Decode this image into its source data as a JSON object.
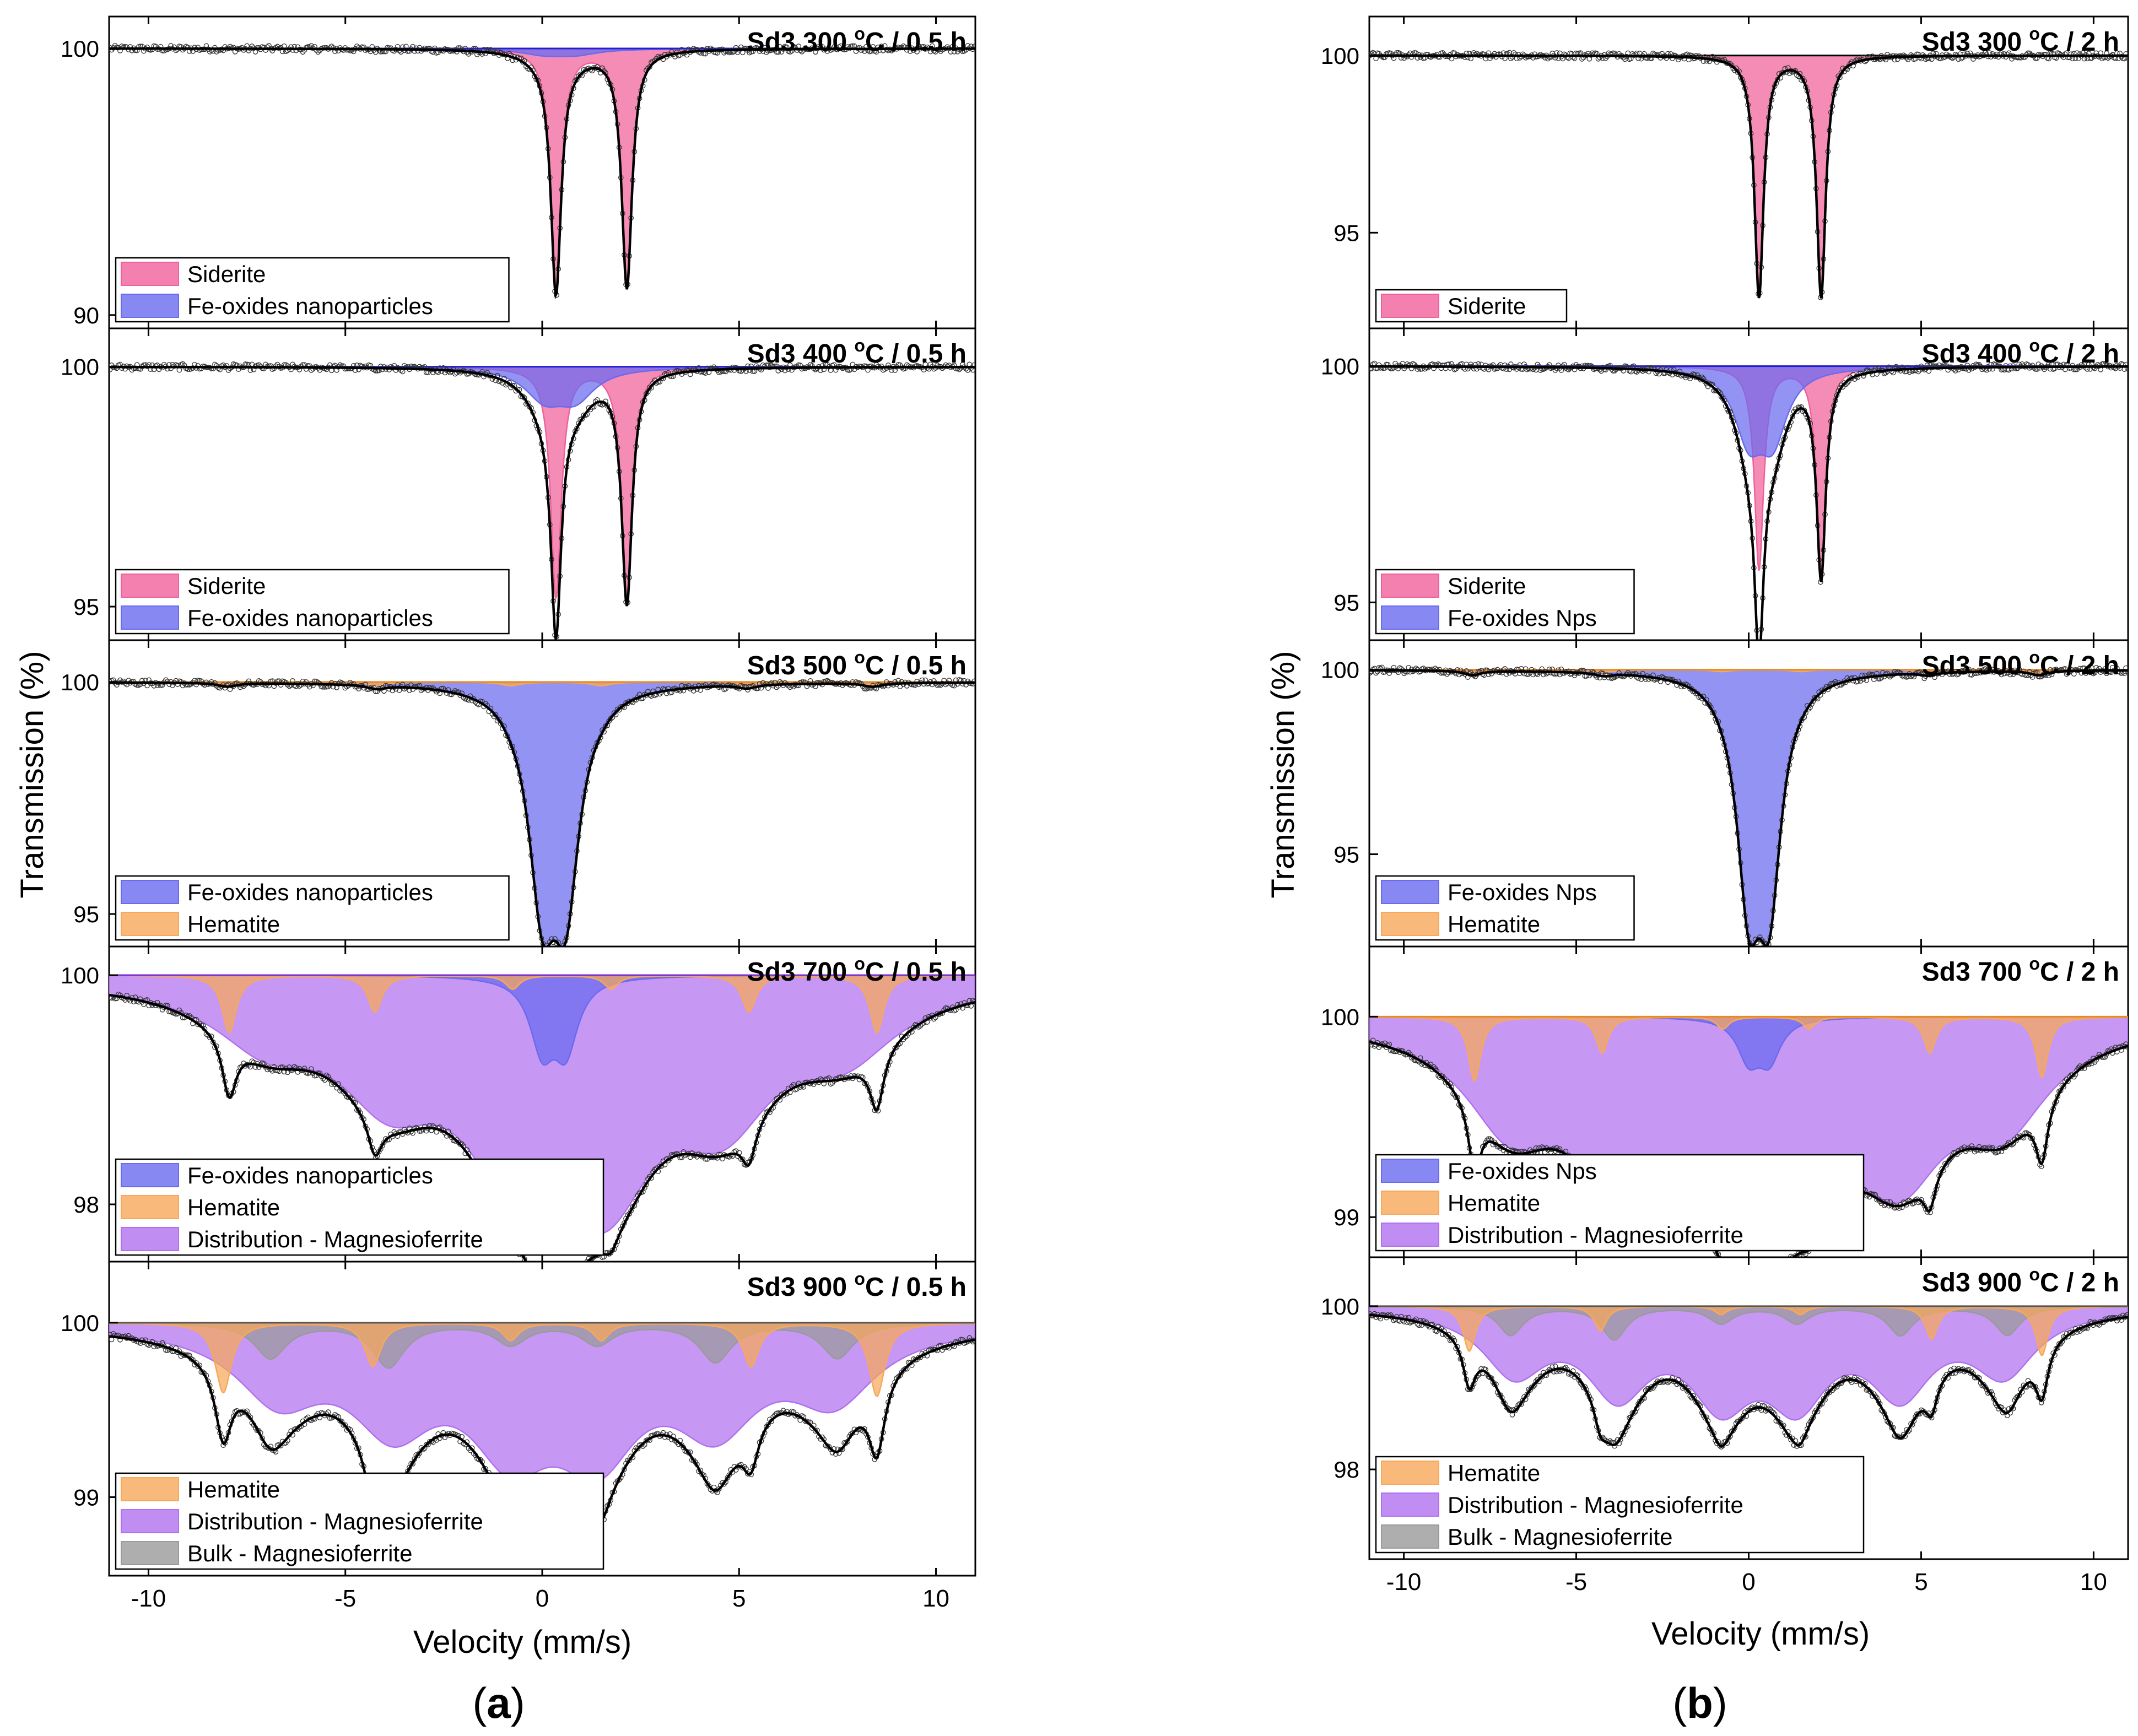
{
  "figure": {
    "y_axis_label": "Transmission (%)",
    "x_axis_label": "Velocity (mm/s)",
    "x_ticks": [
      "-10",
      "-5",
      "0",
      "5",
      "10"
    ],
    "x_tick_values": [
      -10,
      -5,
      0,
      5,
      10
    ],
    "captions": {
      "a": "(a)",
      "a_letter": "a",
      "b": "(b)",
      "b_letter": "b"
    },
    "colors": {
      "siderite": "#f0609a",
      "nanoparticles": "#6a6af0",
      "hematite": "#f7a85a",
      "distribution": "#b070f0",
      "bulk": "#9a9a9a",
      "fit": "#000000",
      "baseline_blue": "#2020d0",
      "baseline_orange": "#e88a20"
    }
  },
  "chart_data": [
    {
      "type": "scatter",
      "column": "a",
      "title": "Sd3 300 °C / 0.5 h",
      "title_main": "Sd3 300 ",
      "title_unit": "C / 0.5 h",
      "xlabel": "Velocity (mm/s)",
      "ylabel": "Transmission (%)",
      "xlim": [
        -11,
        11
      ],
      "ylim": [
        89.5,
        101.2
      ],
      "yticks": [
        "90",
        "100"
      ],
      "ytick_values": [
        90,
        100
      ],
      "baseline": "blue",
      "legend": [
        {
          "label": "Siderite",
          "color": "#f0609a"
        },
        {
          "label": "Fe-oxides nanoparticles",
          "color": "#6a6af0"
        }
      ],
      "components": [
        {
          "name": "Siderite",
          "color": "#f0609a",
          "kind": "doublet",
          "center": 1.25,
          "splitting": 1.8,
          "depth": 8.9,
          "width": 0.16
        },
        {
          "name": "Fe-oxides nanoparticles",
          "color": "#6a6af0",
          "kind": "doublet",
          "center": 0.45,
          "splitting": 0.8,
          "depth": 0.2,
          "width": 0.7
        }
      ]
    },
    {
      "type": "scatter",
      "column": "a",
      "title": "Sd3 400 °C / 0.5 h",
      "title_main": "Sd3 400 ",
      "title_unit": "C / 0.5 h",
      "xlabel": "Velocity (mm/s)",
      "ylabel": "Transmission (%)",
      "xlim": [
        -11,
        11
      ],
      "ylim": [
        94.3,
        100.8
      ],
      "yticks": [
        "95",
        "100"
      ],
      "ytick_values": [
        95,
        100
      ],
      "baseline": "blue",
      "legend": [
        {
          "label": "Siderite",
          "color": "#f0609a"
        },
        {
          "label": "Fe-oxides nanoparticles",
          "color": "#6a6af0"
        }
      ],
      "components": [
        {
          "name": "Siderite",
          "color": "#f0609a",
          "kind": "doublet",
          "center": 1.25,
          "splitting": 1.8,
          "depth": 4.8,
          "width": 0.16
        },
        {
          "name": "Fe-oxides nanoparticles",
          "color": "#6a6af0",
          "kind": "doublet",
          "center": 0.45,
          "splitting": 0.8,
          "depth": 0.6,
          "width": 0.6
        }
      ]
    },
    {
      "type": "scatter",
      "column": "a",
      "title": "Sd3 500 °C / 0.5 h",
      "title_main": "Sd3 500 ",
      "title_unit": "C / 0.5 h",
      "xlabel": "Velocity (mm/s)",
      "ylabel": "Transmission (%)",
      "xlim": [
        -11,
        11
      ],
      "ylim": [
        94.3,
        100.9
      ],
      "yticks": [
        "95",
        "100"
      ],
      "ytick_values": [
        95,
        100
      ],
      "baseline": "orange",
      "legend": [
        {
          "label": "Fe-oxides nanoparticles",
          "color": "#6a6af0"
        },
        {
          "label": "Hematite",
          "color": "#f7a85a"
        }
      ],
      "components": [
        {
          "name": "Fe-oxides nanoparticles",
          "color": "#6a6af0",
          "kind": "doublet",
          "center": 0.3,
          "splitting": 0.6,
          "depth": 4.2,
          "width": 0.42
        },
        {
          "name": "Hematite",
          "color": "#f7a85a",
          "kind": "sextet",
          "center": 0.3,
          "lines": [
            -8.0,
            -4.2,
            -0.8,
            1.5,
            5.2,
            8.4
          ],
          "depth": 0.08,
          "width": 0.3
        }
      ]
    },
    {
      "type": "scatter",
      "column": "a",
      "title": "Sd3 700 °C / 0.5 h",
      "title_main": "Sd3 700 ",
      "title_unit": "C / 0.5 h",
      "xlabel": "Velocity (mm/s)",
      "ylabel": "Transmission (%)",
      "xlim": [
        -11,
        11
      ],
      "ylim": [
        97.5,
        100.25
      ],
      "yticks": [
        "98",
        "100"
      ],
      "ytick_values": [
        98,
        100
      ],
      "baseline": "purple",
      "legend": [
        {
          "label": "Fe-oxides nanoparticles",
          "color": "#6a6af0"
        },
        {
          "label": "Hematite",
          "color": "#f7a85a"
        },
        {
          "label": "Distribution - Magnesioferrite",
          "color": "#b070f0"
        }
      ],
      "components": [
        {
          "name": "Distribution - Magnesioferrite",
          "color": "#b070f0",
          "kind": "broad-sextet",
          "lines": [
            -7.0,
            -3.9,
            -0.7,
            1.6,
            4.6,
            7.7
          ],
          "depths": [
            0.45,
            0.8,
            1.3,
            1.5,
            0.95,
            0.5
          ],
          "width": 1.6
        },
        {
          "name": "Fe-oxides nanoparticles",
          "color": "#6a6af0",
          "kind": "doublet",
          "center": 0.3,
          "splitting": 0.6,
          "depth": 0.6,
          "width": 0.38
        },
        {
          "name": "Hematite",
          "color": "#f7a85a",
          "kind": "sextet",
          "lines": [
            -7.95,
            -4.25,
            -0.75,
            1.75,
            5.25,
            8.5
          ],
          "depths": [
            0.5,
            0.32,
            0.12,
            0.12,
            0.32,
            0.5
          ],
          "width": 0.22
        }
      ]
    },
    {
      "type": "scatter",
      "column": "a",
      "title": "Sd3 900 °C / 0.5 h",
      "title_main": "Sd3 900 ",
      "title_unit": "C / 0.5 h",
      "xlabel": "Velocity (mm/s)",
      "ylabel": "Transmission (%)",
      "xlim": [
        -11,
        11
      ],
      "ylim": [
        98.55,
        100.35
      ],
      "yticks": [
        "99",
        "100"
      ],
      "ytick_values": [
        99,
        100
      ],
      "baseline": "gray",
      "legend": [
        {
          "label": "Hematite",
          "color": "#f7a85a"
        },
        {
          "label": "Distribution - Magnesioferrite",
          "color": "#b070f0"
        },
        {
          "label": "Bulk - Magnesioferrite",
          "color": "#9a9a9a"
        }
      ],
      "components": [
        {
          "name": "Distribution - Magnesioferrite",
          "color": "#b070f0",
          "kind": "broad-sextet",
          "lines": [
            -6.7,
            -3.8,
            -0.8,
            1.4,
            4.4,
            7.4
          ],
          "depths": [
            0.38,
            0.5,
            0.6,
            0.62,
            0.5,
            0.38
          ],
          "width": 1.3
        },
        {
          "name": "Bulk - Magnesioferrite",
          "color": "#9a9a9a",
          "kind": "sextet",
          "lines": [
            -6.9,
            -3.9,
            -0.8,
            1.4,
            4.4,
            7.5
          ],
          "depths": [
            0.2,
            0.25,
            0.12,
            0.12,
            0.22,
            0.2
          ],
          "width": 0.5
        },
        {
          "name": "Hematite",
          "color": "#f7a85a",
          "kind": "sextet",
          "lines": [
            -8.1,
            -4.3,
            -0.8,
            1.5,
            5.3,
            8.5
          ],
          "depths": [
            0.4,
            0.25,
            0.1,
            0.1,
            0.25,
            0.42
          ],
          "width": 0.25
        }
      ]
    },
    {
      "type": "scatter",
      "column": "b",
      "title": "Sd3 300 °C / 2 h",
      "title_main": "Sd3 300 ",
      "title_unit": "C / 2 h",
      "xlabel": "Velocity (mm/s)",
      "ylabel": "Transmission (%)",
      "xlim": [
        -11,
        11
      ],
      "ylim": [
        92.3,
        101.1
      ],
      "yticks": [
        "95",
        "100"
      ],
      "ytick_values": [
        95,
        100
      ],
      "baseline": "black",
      "legend": [
        {
          "label": "Siderite",
          "color": "#f0609a"
        }
      ],
      "components": [
        {
          "name": "Siderite",
          "color": "#f0609a",
          "kind": "doublet",
          "center": 1.2,
          "splitting": 1.8,
          "depth": 6.8,
          "width": 0.16
        }
      ]
    },
    {
      "type": "scatter",
      "column": "b",
      "title": "Sd3 400 °C / 2 h",
      "title_main": "Sd3 400 ",
      "title_unit": "C / 2 h",
      "xlabel": "Velocity (mm/s)",
      "ylabel": "Transmission (%)",
      "xlim": [
        -11,
        11
      ],
      "ylim": [
        94.2,
        100.8
      ],
      "yticks": [
        "95",
        "100"
      ],
      "ytick_values": [
        95,
        100
      ],
      "baseline": "blue",
      "legend": [
        {
          "label": "Siderite",
          "color": "#f0609a"
        },
        {
          "label": "Fe-oxides Nps",
          "color": "#6a6af0"
        }
      ],
      "components": [
        {
          "name": "Siderite",
          "color": "#f0609a",
          "kind": "doublet",
          "center": 1.2,
          "splitting": 1.8,
          "depth": 4.3,
          "width": 0.16
        },
        {
          "name": "Fe-oxides Nps",
          "color": "#6a6af0",
          "kind": "doublet",
          "center": 0.35,
          "splitting": 0.7,
          "depth": 1.4,
          "width": 0.5
        }
      ]
    },
    {
      "type": "scatter",
      "column": "b",
      "title": "Sd3 500 °C / 2 h",
      "title_main": "Sd3 500 ",
      "title_unit": "C / 2 h",
      "xlabel": "Velocity (mm/s)",
      "ylabel": "Transmission (%)",
      "xlim": [
        -11,
        11
      ],
      "ylim": [
        92.5,
        100.8
      ],
      "yticks": [
        "95",
        "100"
      ],
      "ytick_values": [
        95,
        100
      ],
      "baseline": "orange",
      "legend": [
        {
          "label": "Fe-oxides Nps",
          "color": "#6a6af0"
        },
        {
          "label": "Hematite",
          "color": "#f7a85a"
        }
      ],
      "components": [
        {
          "name": "Fe-oxides Nps",
          "color": "#6a6af0",
          "kind": "doublet",
          "center": 0.3,
          "splitting": 0.6,
          "depth": 5.5,
          "width": 0.42
        },
        {
          "name": "Hematite",
          "color": "#f7a85a",
          "kind": "sextet",
          "lines": [
            -8.0,
            -4.2,
            -0.8,
            1.5,
            5.2,
            8.4
          ],
          "depths": [
            0.12,
            0.08,
            0.05,
            0.05,
            0.08,
            0.12
          ],
          "width": 0.3
        }
      ]
    },
    {
      "type": "scatter",
      "column": "b",
      "title": "Sd3 700 °C / 2 h",
      "title_main": "Sd3 700 ",
      "title_unit": "C / 2 h",
      "xlabel": "Velocity (mm/s)",
      "ylabel": "Transmission (%)",
      "xlim": [
        -11,
        11
      ],
      "ylim": [
        98.8,
        100.35
      ],
      "yticks": [
        "99",
        "100"
      ],
      "ytick_values": [
        99,
        100
      ],
      "baseline": "orange",
      "legend": [
        {
          "label": "Fe-oxides Nps",
          "color": "#6a6af0"
        },
        {
          "label": "Hematite",
          "color": "#f7a85a"
        },
        {
          "label": "Distribution - Magnesioferrite",
          "color": "#b070f0"
        }
      ],
      "components": [
        {
          "name": "Distribution - Magnesioferrite",
          "color": "#b070f0",
          "kind": "broad-sextet",
          "lines": [
            -6.9,
            -3.8,
            -0.8,
            1.4,
            4.4,
            7.4
          ],
          "depths": [
            0.45,
            0.6,
            0.65,
            0.66,
            0.6,
            0.42
          ],
          "width": 1.6
        },
        {
          "name": "Fe-oxides Nps",
          "color": "#6a6af0",
          "kind": "doublet",
          "center": 0.3,
          "splitting": 0.6,
          "depth": 0.2,
          "width": 0.4
        },
        {
          "name": "Hematite",
          "color": "#f7a85a",
          "kind": "sextet",
          "lines": [
            -7.95,
            -4.25,
            -0.75,
            1.75,
            5.25,
            8.5
          ],
          "depths": [
            0.32,
            0.18,
            0.06,
            0.06,
            0.18,
            0.3
          ],
          "width": 0.22
        }
      ]
    },
    {
      "type": "scatter",
      "column": "b",
      "title": "Sd3 900 °C / 2 h",
      "title_main": "Sd3 900 ",
      "title_unit": "C / 2 h",
      "xlabel": "Velocity (mm/s)",
      "ylabel": "Transmission (%)",
      "xlim": [
        -11,
        11
      ],
      "ylim": [
        96.9,
        100.6
      ],
      "yticks": [
        "98",
        "100"
      ],
      "ytick_values": [
        98,
        100
      ],
      "baseline": "gray",
      "legend": [
        {
          "label": "Hematite",
          "color": "#f7a85a"
        },
        {
          "label": "Distribution - Magnesioferrite",
          "color": "#b070f0"
        },
        {
          "label": "Bulk - Magnesioferrite",
          "color": "#9a9a9a"
        }
      ],
      "components": [
        {
          "name": "Distribution - Magnesioferrite",
          "color": "#b070f0",
          "kind": "broad-sextet",
          "lines": [
            -6.8,
            -3.8,
            -0.8,
            1.4,
            4.4,
            7.4
          ],
          "depths": [
            0.75,
            0.95,
            1.0,
            1.0,
            0.95,
            0.75
          ],
          "width": 1.1
        },
        {
          "name": "Bulk - Magnesioferrite",
          "color": "#9a9a9a",
          "kind": "sextet",
          "lines": [
            -6.9,
            -3.9,
            -0.8,
            1.4,
            4.4,
            7.5
          ],
          "depths": [
            0.35,
            0.4,
            0.2,
            0.2,
            0.35,
            0.35
          ],
          "width": 0.45
        },
        {
          "name": "Hematite",
          "color": "#f7a85a",
          "kind": "sextet",
          "lines": [
            -8.1,
            -4.3,
            -0.8,
            1.5,
            5.3,
            8.5
          ],
          "depths": [
            0.55,
            0.3,
            0.1,
            0.1,
            0.4,
            0.6
          ],
          "width": 0.22
        }
      ]
    }
  ]
}
